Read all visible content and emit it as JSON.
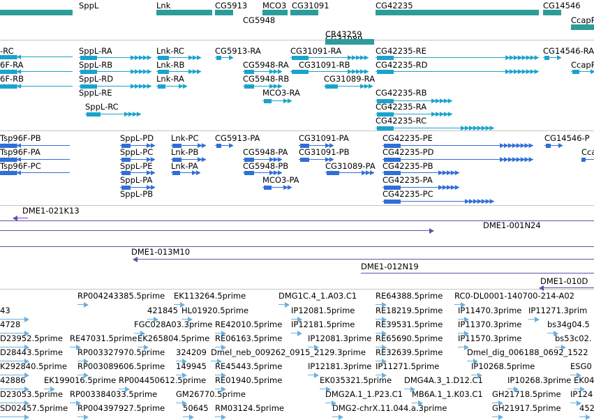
{
  "colors": {
    "gene": "#2a9d9a",
    "transcript": "#1aa3cd",
    "cds": "#2f6fd6",
    "clone": "#6a4bb0",
    "est": "#6ab0e0",
    "separator": "#c4c4c4"
  },
  "tracks": {
    "genes": [
      {
        "label": "SppL"
      },
      {
        "label": "Lnk"
      },
      {
        "label": "CG5913"
      },
      {
        "label": "MCO3"
      },
      {
        "label": "CG31091"
      },
      {
        "label": "CG42235"
      },
      {
        "label": "CG14546"
      },
      {
        "label": "CG5948"
      },
      {
        "label": "CG31089"
      },
      {
        "label": "CR43259"
      },
      {
        "label": "CcapR"
      }
    ],
    "transcripts": [
      {
        "label": "-RC"
      },
      {
        "label": "SppL-RA"
      },
      {
        "label": "Lnk-RC"
      },
      {
        "label": "CG5913-RA"
      },
      {
        "label": "CG31091-RA"
      },
      {
        "label": "CG42235-RE"
      },
      {
        "label": "CG14546-RA"
      },
      {
        "label": "6F-RA"
      },
      {
        "label": "SppL-RB"
      },
      {
        "label": "Lnk-RB"
      },
      {
        "label": "CG5948-RA"
      },
      {
        "label": "CG31091-RB"
      },
      {
        "label": "CG42235-RD"
      },
      {
        "label": "CcapR"
      },
      {
        "label": "6F-RB"
      },
      {
        "label": "SppL-RD"
      },
      {
        "label": "Lnk-RA"
      },
      {
        "label": "CG5948-RB"
      },
      {
        "label": "CG31089-RA"
      },
      {
        "label": "SppL-RE"
      },
      {
        "label": "MCO3-RA"
      },
      {
        "label": "CG42235-RB"
      },
      {
        "label": "SppL-RC"
      },
      {
        "label": "CG42235-RA"
      },
      {
        "label": "CG42235-RC"
      }
    ],
    "proteins": [
      {
        "label": "Tsp96F-PB"
      },
      {
        "label": "SppL-PD"
      },
      {
        "label": "Lnk-PC"
      },
      {
        "label": "CG5913-PA"
      },
      {
        "label": "CG31091-PA"
      },
      {
        "label": "CG42235-PE"
      },
      {
        "label": "CG14546-P"
      },
      {
        "label": "Tsp96F-PA"
      },
      {
        "label": "SppL-PC"
      },
      {
        "label": "Lnk-PB"
      },
      {
        "label": "CG5948-PA"
      },
      {
        "label": "CG31091-PB"
      },
      {
        "label": "CG42235-PD"
      },
      {
        "label": "Cca"
      },
      {
        "label": "Tsp96F-PC"
      },
      {
        "label": "SppL-PE"
      },
      {
        "label": "Lnk-PA"
      },
      {
        "label": "CG5948-PB"
      },
      {
        "label": "CG31089-PA"
      },
      {
        "label": "CG42235-PB"
      },
      {
        "label": "SppL-PA"
      },
      {
        "label": "MCO3-PA"
      },
      {
        "label": "CG42235-PA"
      },
      {
        "label": "SppL-PB"
      },
      {
        "label": "CG42235-PC"
      }
    ],
    "clones": [
      {
        "label": "DME1-021K13"
      },
      {
        "label": "DME1-001N24"
      },
      {
        "label": "DME1-013M10"
      },
      {
        "label": "DME1-012N19"
      },
      {
        "label": "DME1-010D"
      }
    ],
    "ests": [
      {
        "label": "RP004243385.5prime"
      },
      {
        "label": "EK113264.5prime"
      },
      {
        "label": "DMG1C.4_1.A03.C1"
      },
      {
        "label": "RE64388.5prime"
      },
      {
        "label": "RC0-DL0001-140700-214-A02"
      },
      {
        "label": "43"
      },
      {
        "label": "421845"
      },
      {
        "label": "HL01920.5prime"
      },
      {
        "label": "IP12081.5prime"
      },
      {
        "label": "RE18219.5prime"
      },
      {
        "label": "IP11470.3prime"
      },
      {
        "label": "IP11271.3prim"
      },
      {
        "label": "4728"
      },
      {
        "label": "FGC028A03.3prime"
      },
      {
        "label": "RE42010.5prime"
      },
      {
        "label": "IP12181.5prime"
      },
      {
        "label": "RE39531.5prime"
      },
      {
        "label": "IP11370.3prime"
      },
      {
        "label": "bs34g04.5"
      },
      {
        "label": "D23952.5prime"
      },
      {
        "label": "RE47031.5prime"
      },
      {
        "label": "EK265804.5prime"
      },
      {
        "label": "RE06163.5prime"
      },
      {
        "label": "IP12081.3prime"
      },
      {
        "label": "RE65690.5prime"
      },
      {
        "label": "IP11570.3prime"
      },
      {
        "label": "bs53c02."
      },
      {
        "label": "D28443.5prime"
      },
      {
        "label": "RP003327970.5prime"
      },
      {
        "label": "324209"
      },
      {
        "label": "Dmel_neb_009262_0915_2129.3prime"
      },
      {
        "label": "RE32639.5prime"
      },
      {
        "label": "Dmel_dig_006188_0692_1522"
      },
      {
        "label": "K292840.5prime"
      },
      {
        "label": "RP003089606.5prime"
      },
      {
        "label": "149945"
      },
      {
        "label": "RE45443.5prime"
      },
      {
        "label": "IP12181.3prime"
      },
      {
        "label": "IP11271.5prime"
      },
      {
        "label": "IP10268.5prime"
      },
      {
        "label": "ESG0"
      },
      {
        "label": "42886"
      },
      {
        "label": "EK199016.5prime"
      },
      {
        "label": "RP004450612.5prime"
      },
      {
        "label": "RE01940.5prime"
      },
      {
        "label": "EK035321.5prime"
      },
      {
        "label": "DMG4A.3_1.D12.C1"
      },
      {
        "label": "IP10268.3prime"
      },
      {
        "label": "EK04"
      },
      {
        "label": "D23053.5prime"
      },
      {
        "label": "RP003384033.5prime"
      },
      {
        "label": "GM26770.5prime"
      },
      {
        "label": "DMG2A.1_1.P23.C1"
      },
      {
        "label": "MB6A.1_1.K03.C1"
      },
      {
        "label": "GH21718.5prime"
      },
      {
        "label": "IP124"
      },
      {
        "label": "SD02457.5prime"
      },
      {
        "label": "RP004397927.5prime"
      },
      {
        "label": "50645"
      },
      {
        "label": "RM03124.5prime"
      },
      {
        "label": "DMG2-chrX.11.044.a.3prime"
      },
      {
        "label": "GH21917.5prime"
      },
      {
        "label": "452"
      }
    ]
  }
}
